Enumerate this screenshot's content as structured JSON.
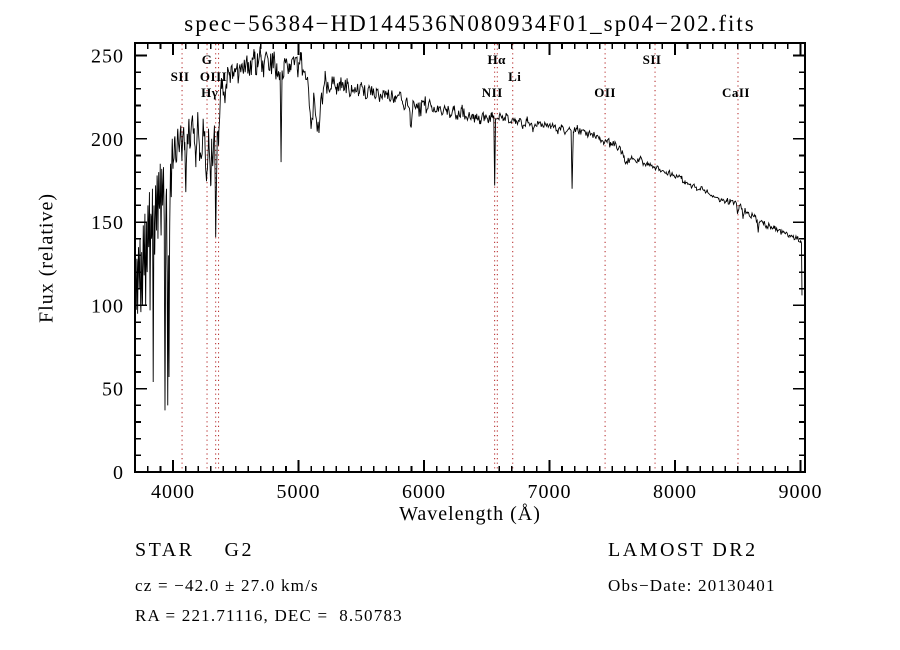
{
  "title": "spec−56384−HD144536N080934F01_sp04−202.fits",
  "axes": {
    "xlabel": "Wavelength (Å)",
    "ylabel": "Flux (relative)"
  },
  "footer": {
    "star_line": "STAR    G2",
    "survey_line": "LAMOST DR2",
    "cz_line": "cz = −42.0 ± 27.0 km/s",
    "obs_line": "Obs−Date: 20130401",
    "radec_line": "RA = 221.71116, DEC =  8.50783"
  },
  "chart_data": {
    "type": "line",
    "title": "spec−56384−HD144536N080934F01_sp04−202.fits",
    "xlabel": "Wavelength (Å)",
    "ylabel": "Flux (relative)",
    "xlim": [
      3697,
      9036
    ],
    "ylim": [
      0,
      257.5
    ],
    "xticks": [
      4000,
      5000,
      6000,
      7000,
      8000,
      9000
    ],
    "yticks": [
      0,
      50,
      100,
      150,
      200,
      250
    ],
    "x_minor_step": 100,
    "y_minor_step": 10,
    "grid": false,
    "line_color": "#000000",
    "marker_color": "#b22222",
    "spectral_lines": [
      {
        "label": "SII",
        "wavelength": 4072,
        "row": 2,
        "dx": -2
      },
      {
        "label": "G",
        "wavelength": 4271,
        "row": 1,
        "dx": 0
      },
      {
        "label": "Hγ",
        "wavelength": 4340,
        "row": 3,
        "dx": -6
      },
      {
        "label": "OIII",
        "wavelength": 4363,
        "row": 2,
        "dx": -5
      },
      {
        "label": "Hα",
        "wavelength": 6563,
        "row": 1,
        "dx": 2
      },
      {
        "label": "NII",
        "wavelength": 6584,
        "row": 3,
        "dx": -5
      },
      {
        "label": "Li",
        "wavelength": 6707,
        "row": 2,
        "dx": 2
      },
      {
        "label": "OII",
        "wavelength": 7443,
        "row": 3,
        "dx": 0
      },
      {
        "label": "SII",
        "wavelength": 7841,
        "row": 1,
        "dx": -3
      },
      {
        "label": "CaII",
        "wavelength": 8502,
        "row": 3,
        "dx": -2
      }
    ],
    "noise_segments": [
      {
        "from": 3697,
        "to": 4000,
        "amp": 10
      },
      {
        "from": 4000,
        "to": 4450,
        "amp": 9
      },
      {
        "from": 4450,
        "to": 5250,
        "amp": 8
      },
      {
        "from": 5250,
        "to": 6050,
        "amp": 5
      },
      {
        "from": 6050,
        "to": 6560,
        "amp": 3.5
      },
      {
        "from": 6560,
        "to": 7600,
        "amp": 2.5
      },
      {
        "from": 7600,
        "to": 9036,
        "amp": 2
      }
    ],
    "series": [
      {
        "name": "spectrum",
        "points": [
          [
            3700,
            128
          ],
          [
            3706,
            98
          ],
          [
            3712,
            128
          ],
          [
            3718,
            95
          ],
          [
            3725,
            135
          ],
          [
            3731,
            110
          ],
          [
            3737,
            140
          ],
          [
            3744,
            96
          ],
          [
            3750,
            132
          ],
          [
            3757,
            104
          ],
          [
            3763,
            148
          ],
          [
            3770,
            118
          ],
          [
            3776,
            155
          ],
          [
            3782,
            100
          ],
          [
            3788,
            150
          ],
          [
            3794,
            120
          ],
          [
            3800,
            160
          ],
          [
            3806,
            135
          ],
          [
            3812,
            168
          ],
          [
            3817,
            97
          ],
          [
            3823,
            155
          ],
          [
            3829,
            140
          ],
          [
            3836,
            170
          ],
          [
            3842,
            54
          ],
          [
            3848,
            160
          ],
          [
            3855,
            135
          ],
          [
            3861,
            172
          ],
          [
            3867,
            150
          ],
          [
            3873,
            178
          ],
          [
            3880,
            140
          ],
          [
            3886,
            180
          ],
          [
            3892,
            158
          ],
          [
            3898,
            185
          ],
          [
            3905,
            142
          ],
          [
            3911,
            180
          ],
          [
            3917,
            160
          ],
          [
            3924,
            183
          ],
          [
            3930,
            150
          ],
          [
            3936,
            37
          ],
          [
            3942,
            148
          ],
          [
            3948,
            170
          ],
          [
            3953,
            120
          ],
          [
            3958,
            40
          ],
          [
            3963,
            130
          ],
          [
            3968,
            57
          ],
          [
            3974,
            150
          ],
          [
            3980,
            185
          ],
          [
            3986,
            165
          ],
          [
            3992,
            195
          ],
          [
            4000,
            182
          ],
          [
            4012,
            200
          ],
          [
            4025,
            186
          ],
          [
            4038,
            206
          ],
          [
            4050,
            192
          ],
          [
            4062,
            208
          ],
          [
            4072,
            190
          ],
          [
            4085,
            207
          ],
          [
            4094,
            198
          ],
          [
            4102,
            168
          ],
          [
            4112,
            196
          ],
          [
            4125,
            210
          ],
          [
            4140,
            196
          ],
          [
            4155,
            214
          ],
          [
            4170,
            198
          ],
          [
            4182,
            183
          ],
          [
            4195,
            210
          ],
          [
            4210,
            196
          ],
          [
            4225,
            188
          ],
          [
            4240,
            212
          ],
          [
            4255,
            196
          ],
          [
            4270,
            180
          ],
          [
            4283,
            206
          ],
          [
            4295,
            184
          ],
          [
            4300,
            172
          ],
          [
            4308,
            200
          ],
          [
            4318,
            186
          ],
          [
            4330,
            208
          ],
          [
            4340,
            141
          ],
          [
            4352,
            204
          ],
          [
            4363,
            196
          ],
          [
            4375,
            220
          ],
          [
            4388,
            230
          ],
          [
            4400,
            226
          ],
          [
            4425,
            233
          ],
          [
            4450,
            240
          ],
          [
            4475,
            236
          ],
          [
            4500,
            242
          ],
          [
            4525,
            238
          ],
          [
            4550,
            245
          ],
          [
            4575,
            240
          ],
          [
            4600,
            246
          ],
          [
            4625,
            241
          ],
          [
            4650,
            248
          ],
          [
            4675,
            243
          ],
          [
            4700,
            249
          ],
          [
            4725,
            244
          ],
          [
            4750,
            250
          ],
          [
            4775,
            245
          ],
          [
            4800,
            248
          ],
          [
            4830,
            238
          ],
          [
            4853,
            240
          ],
          [
            4861,
            186
          ],
          [
            4869,
            241
          ],
          [
            4885,
            246
          ],
          [
            4900,
            247
          ],
          [
            4930,
            240
          ],
          [
            4960,
            249
          ],
          [
            4990,
            242
          ],
          [
            5020,
            247
          ],
          [
            5050,
            240
          ],
          [
            5080,
            230
          ],
          [
            5100,
            206
          ],
          [
            5125,
            225
          ],
          [
            5150,
            205
          ],
          [
            5170,
            212
          ],
          [
            5185,
            225
          ],
          [
            5210,
            235
          ],
          [
            5240,
            230
          ],
          [
            5270,
            236
          ],
          [
            5300,
            231
          ],
          [
            5330,
            234
          ],
          [
            5360,
            229
          ],
          [
            5390,
            233
          ],
          [
            5420,
            228
          ],
          [
            5450,
            231
          ],
          [
            5480,
            227
          ],
          [
            5500,
            234
          ],
          [
            5530,
            228
          ],
          [
            5560,
            231
          ],
          [
            5590,
            226
          ],
          [
            5620,
            230
          ],
          [
            5650,
            225
          ],
          [
            5680,
            228
          ],
          [
            5710,
            224
          ],
          [
            5740,
            227
          ],
          [
            5770,
            222
          ],
          [
            5800,
            226
          ],
          [
            5830,
            221
          ],
          [
            5860,
            224
          ],
          [
            5888,
            216
          ],
          [
            5896,
            207
          ],
          [
            5910,
            218
          ],
          [
            5940,
            221
          ],
          [
            5970,
            217
          ],
          [
            6000,
            222
          ],
          [
            6030,
            218
          ],
          [
            6060,
            220
          ],
          [
            6090,
            216
          ],
          [
            6120,
            219
          ],
          [
            6150,
            215
          ],
          [
            6180,
            218
          ],
          [
            6210,
            214
          ],
          [
            6240,
            217
          ],
          [
            6270,
            213
          ],
          [
            6300,
            218
          ],
          [
            6330,
            213
          ],
          [
            6360,
            216
          ],
          [
            6390,
            212
          ],
          [
            6420,
            215
          ],
          [
            6450,
            211
          ],
          [
            6480,
            214
          ],
          [
            6510,
            210
          ],
          [
            6540,
            213
          ],
          [
            6556,
            214
          ],
          [
            6563,
            172
          ],
          [
            6570,
            212
          ],
          [
            6600,
            214
          ],
          [
            6630,
            211
          ],
          [
            6660,
            214
          ],
          [
            6690,
            210
          ],
          [
            6707,
            212
          ],
          [
            6730,
            209
          ],
          [
            6760,
            212
          ],
          [
            6790,
            208
          ],
          [
            6820,
            211
          ],
          [
            6850,
            209
          ],
          [
            6868,
            204
          ],
          [
            6890,
            208
          ],
          [
            6920,
            210
          ],
          [
            6950,
            207
          ],
          [
            6980,
            209
          ],
          [
            7010,
            206
          ],
          [
            7040,
            208
          ],
          [
            7070,
            205
          ],
          [
            7100,
            207
          ],
          [
            7130,
            204
          ],
          [
            7160,
            206
          ],
          [
            7172,
            205
          ],
          [
            7180,
            170
          ],
          [
            7190,
            204
          ],
          [
            7220,
            206
          ],
          [
            7250,
            203
          ],
          [
            7280,
            205
          ],
          [
            7310,
            202
          ],
          [
            7340,
            203
          ],
          [
            7370,
            200
          ],
          [
            7400,
            201
          ],
          [
            7430,
            198
          ],
          [
            7460,
            199
          ],
          [
            7490,
            196
          ],
          [
            7520,
            197
          ],
          [
            7550,
            194
          ],
          [
            7580,
            193
          ],
          [
            7594,
            190
          ],
          [
            7606,
            185
          ],
          [
            7630,
            187
          ],
          [
            7660,
            188
          ],
          [
            7690,
            186
          ],
          [
            7720,
            188
          ],
          [
            7750,
            185
          ],
          [
            7780,
            186
          ],
          [
            7810,
            184
          ],
          [
            7840,
            183
          ],
          [
            7870,
            182
          ],
          [
            7900,
            181
          ],
          [
            7930,
            180
          ],
          [
            7960,
            179
          ],
          [
            7990,
            178
          ],
          [
            8020,
            177
          ],
          [
            8050,
            176
          ],
          [
            8080,
            175
          ],
          [
            8110,
            173
          ],
          [
            8140,
            172
          ],
          [
            8170,
            171
          ],
          [
            8200,
            170
          ],
          [
            8230,
            169
          ],
          [
            8260,
            168
          ],
          [
            8290,
            166
          ],
          [
            8320,
            165
          ],
          [
            8350,
            164
          ],
          [
            8380,
            163
          ],
          [
            8410,
            163
          ],
          [
            8440,
            162
          ],
          [
            8470,
            161
          ],
          [
            8490,
            161
          ],
          [
            8498,
            155
          ],
          [
            8512,
            160
          ],
          [
            8535,
            158
          ],
          [
            8542,
            152
          ],
          [
            8556,
            157
          ],
          [
            8580,
            156
          ],
          [
            8610,
            154
          ],
          [
            8640,
            153
          ],
          [
            8655,
            151
          ],
          [
            8662,
            145
          ],
          [
            8676,
            150
          ],
          [
            8700,
            150
          ],
          [
            8730,
            148
          ],
          [
            8760,
            147
          ],
          [
            8790,
            146
          ],
          [
            8820,
            145
          ],
          [
            8850,
            144
          ],
          [
            8880,
            143
          ],
          [
            8910,
            142
          ],
          [
            8940,
            141
          ],
          [
            8970,
            140
          ],
          [
            9000,
            139
          ],
          [
            9008,
            137
          ],
          [
            9012,
            106
          ]
        ]
      }
    ]
  }
}
